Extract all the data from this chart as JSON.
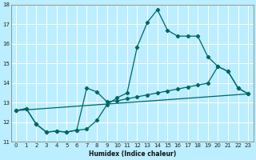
{
  "xlabel": "Humidex (Indice chaleur)",
  "bg_color": "#bbeeff",
  "line_color": "#006666",
  "grid_color": "#ffffff",
  "xlim": [
    -0.5,
    23.5
  ],
  "ylim": [
    11,
    18
  ],
  "xticks": [
    0,
    1,
    2,
    3,
    4,
    5,
    6,
    7,
    8,
    9,
    10,
    11,
    12,
    13,
    14,
    15,
    16,
    17,
    18,
    19,
    20,
    21,
    22,
    23
  ],
  "yticks": [
    11,
    12,
    13,
    14,
    15,
    16,
    17,
    18
  ],
  "line1_x": [
    0,
    1,
    2,
    3,
    4,
    5,
    6,
    7,
    8,
    9,
    10,
    11,
    12,
    13,
    14,
    15,
    16,
    17,
    18,
    19,
    20,
    21,
    22,
    23
  ],
  "line1_y": [
    12.6,
    12.7,
    11.9,
    11.5,
    11.55,
    11.5,
    11.6,
    11.65,
    12.1,
    12.9,
    13.25,
    13.5,
    15.85,
    17.1,
    17.75,
    16.7,
    16.4,
    16.4,
    16.4,
    15.35,
    14.85,
    14.6,
    13.75,
    13.45
  ],
  "line2_x": [
    0,
    1,
    2,
    3,
    4,
    5,
    6,
    7,
    8,
    9,
    10,
    11,
    12,
    13,
    14,
    15,
    16,
    17,
    18,
    19,
    20,
    21,
    22,
    23
  ],
  "line2_y": [
    12.6,
    12.7,
    11.9,
    11.5,
    11.55,
    11.5,
    11.6,
    13.75,
    13.55,
    13.05,
    13.1,
    13.2,
    13.3,
    13.4,
    13.5,
    13.6,
    13.7,
    13.8,
    13.9,
    14.0,
    14.85,
    14.6,
    13.75,
    13.45
  ],
  "line3_x": [
    0,
    23
  ],
  "line3_y": [
    12.6,
    13.45
  ]
}
